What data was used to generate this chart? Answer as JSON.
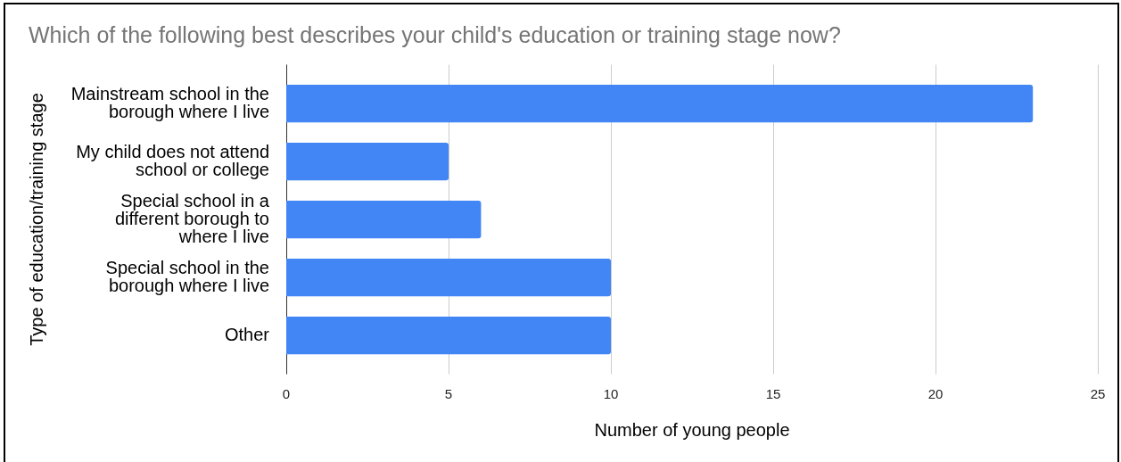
{
  "chart_data": {
    "type": "bar",
    "orientation": "horizontal",
    "title": "Which of the following best describes your child's education or training stage now?",
    "xlabel": "Number of young people",
    "ylabel": "Type of education/training stage",
    "categories": [
      "Mainstream school in the borough where I live",
      "My child does not attend school or college",
      "Special school in a different borough to where I live",
      "Special school in the borough where I live",
      "Other"
    ],
    "values": [
      23,
      5,
      6,
      10,
      10
    ],
    "color": "#4285f4",
    "xlim": [
      0,
      25
    ],
    "xticks": [
      0,
      5,
      10,
      15,
      20,
      25
    ],
    "grid": "x"
  }
}
